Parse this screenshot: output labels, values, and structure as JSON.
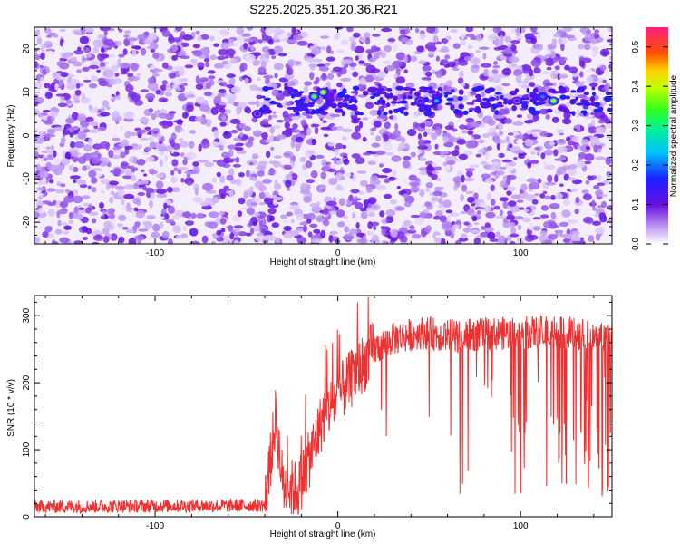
{
  "title": "S225.2025.351.20.36.R21",
  "chart_data": [
    {
      "type": "heatmap",
      "xlabel": "Height of straight line (km)",
      "ylabel": "Frequency (Hz)",
      "xlim": [
        -166,
        150
      ],
      "ylim": [
        -25,
        25
      ],
      "x_ticks": [
        -100,
        0,
        100
      ],
      "y_ticks": [
        -20,
        -10,
        0,
        10,
        20
      ],
      "colorbar": {
        "label": "Normalized spectral amplitude",
        "range": [
          0,
          0.55
        ],
        "ticks": [
          0.0,
          0.1,
          0.2,
          0.3,
          0.4,
          0.5
        ]
      },
      "signal_band_hz": 8,
      "hot_spots": [
        {
          "x": -13,
          "y": 9,
          "v": 0.35
        },
        {
          "x": -8,
          "y": 10,
          "v": 0.42
        },
        {
          "x": 54,
          "y": 8,
          "v": 0.22
        },
        {
          "x": 118,
          "y": 8,
          "v": 0.38
        },
        {
          "x": 112,
          "y": 9,
          "v": 0.2
        },
        {
          "x": -44,
          "y": 5,
          "v": 0.12
        },
        {
          "x": 45,
          "y": 8,
          "v": 0.13
        },
        {
          "x": 98,
          "y": 8,
          "v": 0.12
        }
      ]
    },
    {
      "type": "line",
      "xlabel": "Height of straight line (km)",
      "ylabel": "SNR (10 * v/v)",
      "xlim": [
        -166,
        150
      ],
      "ylim": [
        0,
        330
      ],
      "x_ticks": [
        -100,
        0,
        100
      ],
      "y_ticks": [
        0,
        100,
        200,
        300
      ],
      "line_color": "#f03030",
      "profile": [
        {
          "x": -166,
          "y": 15
        },
        {
          "x": -40,
          "y": 17
        },
        {
          "x": -37,
          "y": 80
        },
        {
          "x": -34,
          "y": 150
        },
        {
          "x": -30,
          "y": 45
        },
        {
          "x": -22,
          "y": 40
        },
        {
          "x": -15,
          "y": 90
        },
        {
          "x": -8,
          "y": 150
        },
        {
          "x": 0,
          "y": 180
        },
        {
          "x": 10,
          "y": 215
        },
        {
          "x": 20,
          "y": 250
        },
        {
          "x": 30,
          "y": 265
        },
        {
          "x": 45,
          "y": 275
        },
        {
          "x": 60,
          "y": 270
        },
        {
          "x": 80,
          "y": 272
        },
        {
          "x": 100,
          "y": 275
        },
        {
          "x": 120,
          "y": 275
        },
        {
          "x": 150,
          "y": 270
        }
      ],
      "dropout_regions": [
        [
          58,
          72
        ],
        [
          96,
          105
        ],
        [
          112,
          126
        ],
        [
          128,
          150
        ]
      ]
    }
  ]
}
